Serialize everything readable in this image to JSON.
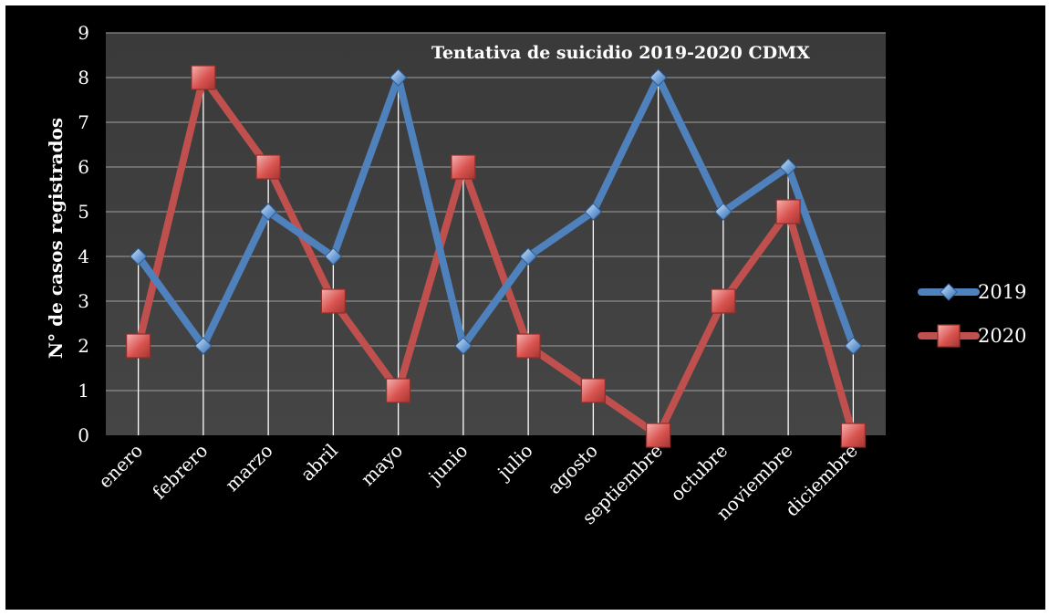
{
  "chart_data": {
    "type": "line",
    "title": "Tentativa de suicidio 2019-2020 CDMX",
    "ylabel": "N° de casos registrados",
    "xlabel": "",
    "categories": [
      "enero",
      "febrero",
      "marzo",
      "abril",
      "mayo",
      "junio",
      "julio",
      "agosto",
      "septiembre",
      "octubre",
      "noviembre",
      "diciembre"
    ],
    "ylim": [
      0,
      9
    ],
    "yticks": [
      0,
      1,
      2,
      3,
      4,
      5,
      6,
      7,
      8,
      9
    ],
    "grid": true,
    "legend": "right",
    "series": [
      {
        "name": "2019",
        "color": "#4f81bd",
        "marker": "diamond",
        "values": [
          4,
          2,
          5,
          4,
          8,
          2,
          4,
          5,
          8,
          5,
          6,
          2
        ]
      },
      {
        "name": "2020",
        "color": "#c0504d",
        "marker": "square",
        "values": [
          2,
          8,
          6,
          3,
          1,
          6,
          2,
          1,
          0,
          3,
          5,
          0
        ]
      }
    ]
  }
}
